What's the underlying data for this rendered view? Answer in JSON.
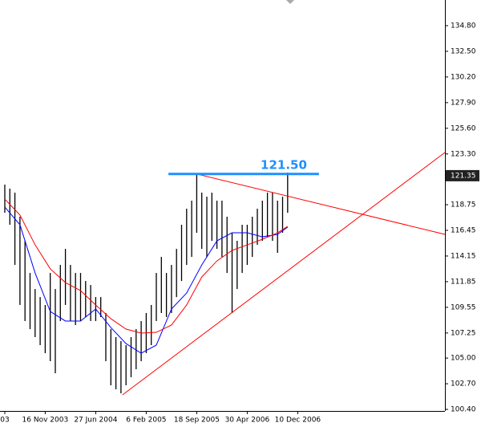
{
  "chart_data": {
    "type": "hl",
    "xlim": [
      -0.95,
      87.14
    ],
    "ylim": [
      100.26,
      137.1
    ],
    "yticks": [
      {
        "value": 134.8,
        "label": "134.80"
      },
      {
        "value": 132.5,
        "label": "132.50"
      },
      {
        "value": 130.2,
        "label": "130.20"
      },
      {
        "value": 127.9,
        "label": "127.90"
      },
      {
        "value": 125.6,
        "label": "125.60"
      },
      {
        "value": 123.3,
        "label": "123.30"
      },
      {
        "value": 118.75,
        "label": "118.75"
      },
      {
        "value": 116.45,
        "label": "116.45"
      },
      {
        "value": 114.15,
        "label": "114.15"
      },
      {
        "value": 111.85,
        "label": "111.85"
      },
      {
        "value": 109.55,
        "label": "109.55"
      },
      {
        "value": 107.25,
        "label": "107.25"
      },
      {
        "value": 105,
        "label": "105.00"
      },
      {
        "value": 102.7,
        "label": "102.70"
      },
      {
        "value": 100.4,
        "label": "100.40"
      }
    ],
    "xticks": [
      {
        "value": 0,
        "label": "03"
      },
      {
        "value": 8,
        "label": "16 Nov 2003"
      },
      {
        "value": 18,
        "label": "27 Jun 2004"
      },
      {
        "value": 28,
        "label": "6 Feb 2005"
      },
      {
        "value": 38,
        "label": "18 Sep 2005"
      },
      {
        "value": 48,
        "label": "30 Apr 2006"
      },
      {
        "value": 58,
        "label": "10 Dec 2006"
      }
    ],
    "bars": {
      "color": "#000000",
      "high": [
        120.55,
        120.19,
        119.83,
        117.67,
        115.51,
        112.63,
        111.19,
        110.47,
        109.76,
        112.63,
        111.19,
        113.35,
        114.79,
        113.35,
        112.63,
        112.63,
        111.91,
        111.55,
        110.47,
        110.47,
        109.04,
        107.6,
        106.88,
        106.52,
        106.16,
        106.88,
        107.6,
        108.32,
        109.04,
        109.76,
        112.63,
        114.07,
        112.63,
        113.35,
        114.79,
        116.95,
        118.39,
        119.11,
        121.49,
        119.83,
        119.47,
        119.83,
        119.11,
        119.11,
        117.67,
        116.23,
        115.51,
        116.95,
        116.95,
        117.67,
        118.39,
        119.11,
        119.83,
        119.83,
        119.11,
        119.47,
        121.63
      ],
      "low": [
        118.03,
        116.95,
        113.35,
        109.76,
        108.32,
        107.6,
        106.88,
        106.16,
        105.44,
        104.72,
        103.64,
        108.32,
        109.76,
        108.32,
        107.96,
        108.32,
        108.68,
        108.32,
        108.32,
        108.68,
        104.72,
        102.56,
        102.2,
        101.84,
        102.56,
        103.28,
        104,
        104.72,
        105.44,
        106.16,
        108.32,
        109.04,
        108.68,
        109.04,
        110.47,
        111.91,
        113.35,
        114.07,
        116.23,
        114.79,
        114.07,
        115.51,
        114.79,
        114.07,
        112.63,
        109.04,
        111.19,
        112.63,
        113.35,
        114.07,
        115.15,
        115.51,
        115.87,
        115.51,
        114.43,
        116.23,
        118.03
      ]
    },
    "series": [
      {
        "color": "#0000ff",
        "x": [
          0,
          3,
          6,
          9,
          12,
          15,
          18,
          21,
          24,
          27,
          30,
          33,
          36,
          39,
          42,
          45,
          48,
          51,
          54,
          56
        ],
        "values": [
          118.54,
          116.95,
          112.63,
          109.18,
          108.32,
          108.32,
          109.4,
          107.74,
          106.3,
          105.44,
          106.16,
          109.4,
          110.83,
          113.35,
          115.51,
          116.23,
          116.23,
          115.87,
          116.09,
          116.74
        ]
      },
      {
        "color": "#ff0000",
        "x": [
          0,
          3,
          6,
          9,
          12,
          15,
          18,
          21,
          24,
          27,
          30,
          33,
          36,
          39,
          42,
          45,
          48,
          51,
          54,
          56
        ],
        "values": [
          119.25,
          117.82,
          115.15,
          113,
          111.77,
          111.05,
          109.76,
          108.53,
          107.6,
          107.24,
          107.31,
          107.96,
          109.76,
          112.27,
          113.71,
          114.65,
          115.15,
          115.65,
          116.23,
          116.81
        ]
      }
    ],
    "trendlines": [
      {
        "color": "#ff0000",
        "x": [
          23.3,
          87.14
        ],
        "values": [
          101.7,
          123.43
        ]
      },
      {
        "color": "#ff0000",
        "x": [
          38.1,
          87.14
        ],
        "values": [
          121.49,
          116.09
        ]
      }
    ],
    "level": {
      "value": 121.5,
      "label": "121.50",
      "x": [
        32.4,
        62.2
      ],
      "color": "#1e90ff"
    },
    "current_price": {
      "value": 121.35,
      "label": "121.35"
    }
  }
}
